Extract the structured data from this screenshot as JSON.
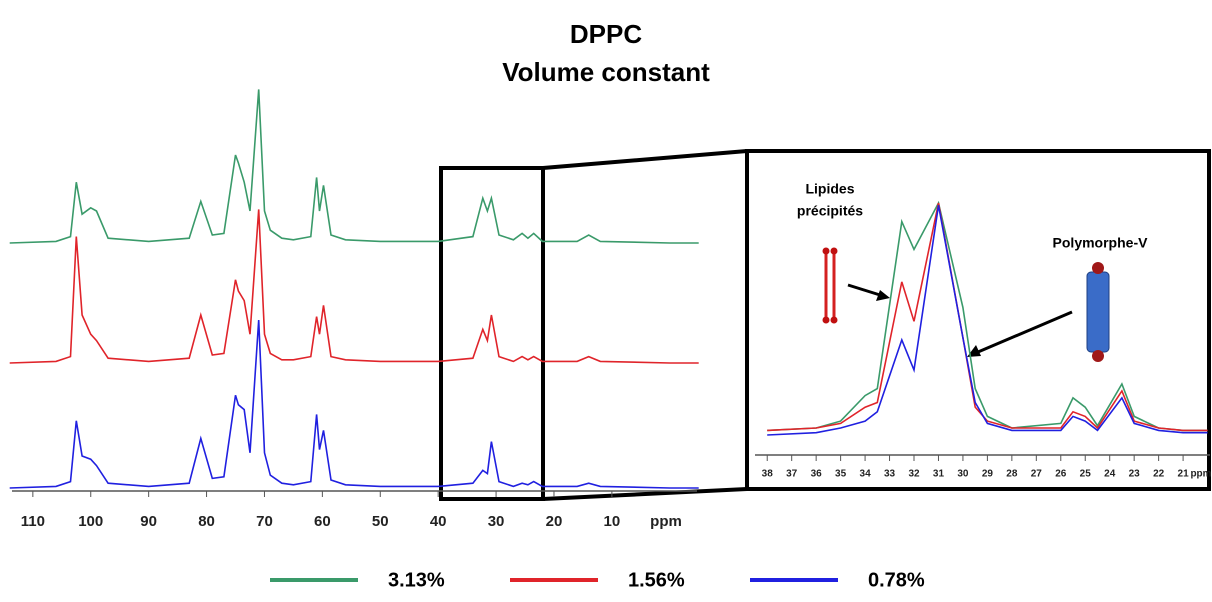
{
  "title": "DPPC",
  "subtitle": "Volume constant",
  "chart_data": [
    {
      "type": "line",
      "xlabel": "ppm",
      "x": [
        114,
        106,
        103.5,
        102.5,
        101.5,
        100,
        99,
        97,
        90,
        83,
        81,
        79,
        77,
        75,
        74.5,
        73.5,
        72.5,
        71,
        70,
        69,
        67,
        65,
        62,
        61,
        60.5,
        59.8,
        58.5,
        56,
        50,
        40,
        34,
        32.3,
        31.5,
        30.8,
        29.5,
        27,
        25.5,
        24.5,
        23.5,
        22,
        16,
        14,
        12,
        0,
        -5
      ],
      "xlim": [
        113.6,
        -4.7
      ],
      "xticks": [
        110,
        100,
        90,
        80,
        70,
        60,
        50,
        40,
        30,
        20,
        10
      ],
      "series": [
        {
          "name": "3.13%",
          "color": "#3a9a6a",
          "values": [
            0,
            1,
            4,
            38,
            18,
            22,
            20,
            3,
            1,
            3,
            26,
            5,
            6,
            55,
            50,
            38,
            20,
            96,
            20,
            8,
            3,
            2,
            4,
            41,
            20,
            36,
            5,
            2,
            1,
            1,
            4,
            28,
            20,
            28,
            5,
            2,
            6,
            3,
            6,
            1,
            1,
            5,
            1,
            0,
            0
          ]
        },
        {
          "name": "1.56%",
          "color": "#e0242a",
          "values": [
            0,
            1,
            4,
            79,
            30,
            18,
            14,
            3,
            1,
            3,
            30,
            5,
            6,
            52,
            45,
            39,
            18,
            96,
            18,
            6,
            2,
            2,
            4,
            29,
            18,
            36,
            4,
            2,
            1,
            1,
            3,
            21,
            14,
            30,
            4,
            1,
            4,
            2,
            4,
            1,
            1,
            4,
            1,
            0,
            0
          ]
        },
        {
          "name": "0.78%",
          "color": "#2020e0",
          "values": [
            0,
            1,
            4,
            42,
            20,
            18,
            14,
            3,
            1,
            3,
            31,
            6,
            7,
            58,
            52,
            49,
            22,
            105,
            22,
            8,
            3,
            2,
            4,
            46,
            24,
            36,
            5,
            2,
            1,
            1,
            3,
            11,
            9,
            29,
            4,
            1,
            3,
            2,
            4,
            1,
            1,
            3,
            1,
            0,
            0
          ]
        }
      ]
    },
    {
      "type": "line",
      "xlabel": "ppm",
      "annotations": [
        "Lipides",
        "précipités",
        "Polymorphe-V"
      ],
      "x": [
        38,
        36,
        35,
        34,
        33.5,
        32.5,
        32,
        31,
        30,
        29.5,
        29,
        28,
        26,
        25.5,
        25,
        24.5,
        23.5,
        23,
        22,
        21,
        20
      ],
      "xlim": [
        38.5,
        19.9
      ],
      "xticks": [
        38,
        37,
        36,
        35,
        34,
        33,
        32,
        31,
        30,
        29,
        28,
        27,
        26,
        25,
        24,
        23,
        22,
        21
      ],
      "series": [
        {
          "color": "#3a9a6a",
          "values": [
            2,
            3,
            6,
            17,
            20,
            92,
            80,
            100,
            55,
            20,
            8,
            3,
            5,
            16,
            12,
            4,
            22,
            8,
            3,
            2,
            2
          ]
        },
        {
          "color": "#e0242a",
          "values": [
            2,
            3,
            5,
            12,
            14,
            66,
            49,
            100,
            42,
            12,
            6,
            3,
            3,
            10,
            8,
            3,
            19,
            6,
            3,
            2,
            2
          ]
        },
        {
          "color": "#2020e0",
          "values": [
            0,
            1,
            3,
            6,
            10,
            41,
            28,
            99,
            42,
            14,
            5,
            2,
            2,
            8,
            6,
            2,
            16,
            5,
            2,
            1,
            1
          ]
        }
      ]
    }
  ]
}
